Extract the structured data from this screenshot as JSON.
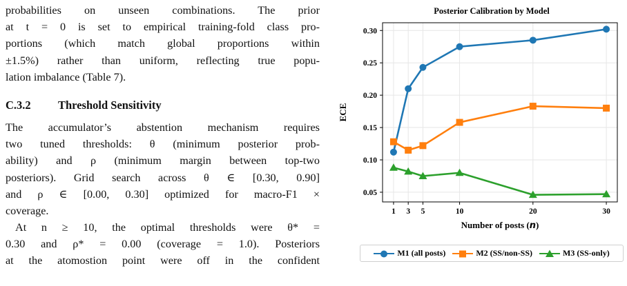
{
  "text_column": {
    "lines": [
      "probabilities on unseen combinations. The prior",
      "at t = 0 is set to empirical training-fold class pro-",
      "portions (which match global proportions within",
      "±1.5%) rather than uniform, reflecting true popu-",
      "lation imbalance (Table 7)."
    ],
    "section_number": "C.3.2",
    "section_title": "Threshold Sensitivity",
    "para2_lines": [
      "The accumulator’s abstention mechanism requires",
      "two tuned thresholds: θ (minimum posterior prob-",
      "ability) and ρ (minimum margin between top-two",
      "posteriors). Grid search across θ ∈ [0.30, 0.90]",
      "and ρ ∈ [0.00, 0.30] optimized for macro-F1 ×",
      "coverage."
    ],
    "para3_lines": [
      "At n ≥ 10, the optimal thresholds were θ* =",
      "0.30 and ρ* = 0.00 (coverage = 1.0). Posteriors",
      "at the atomostion point were off in the confident"
    ]
  },
  "chart_data": {
    "type": "line",
    "title": "Posterior Calibration by Model",
    "xlabel": "Number of posts (n)",
    "ylabel": "ECE",
    "x": [
      1,
      3,
      5,
      10,
      20,
      30
    ],
    "xticks": [
      1,
      3,
      5,
      10,
      20,
      30
    ],
    "xlim": [
      -0.5,
      31.5
    ],
    "ylim": [
      0.035,
      0.312
    ],
    "yticks": [
      0.05,
      0.1,
      0.15,
      0.2,
      0.25,
      0.3
    ],
    "ytick_labels": [
      "0.05",
      "0.10",
      "0.15",
      "0.20",
      "0.25",
      "0.30"
    ],
    "grid": true,
    "legend_position": "below",
    "series": [
      {
        "name": "M1 (all posts)",
        "color": "#1f77b4",
        "marker": "circle",
        "values": [
          0.112,
          0.21,
          0.243,
          0.275,
          0.285,
          0.302
        ]
      },
      {
        "name": "M2 (SS/non-SS)",
        "color": "#ff7f0e",
        "marker": "square",
        "values": [
          0.128,
          0.115,
          0.122,
          0.158,
          0.183,
          0.18
        ]
      },
      {
        "name": "M3 (SS-only)",
        "color": "#2ca02c",
        "marker": "triangle",
        "values": [
          0.088,
          0.082,
          0.075,
          0.08,
          0.046,
          0.047
        ]
      }
    ]
  }
}
